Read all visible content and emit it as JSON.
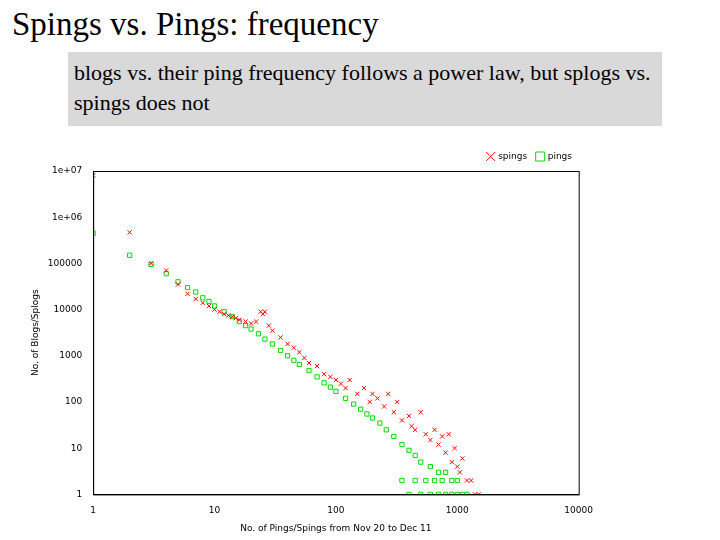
{
  "chart_data": {
    "type": "scatter",
    "title": "Spings vs. Pings: frequency",
    "subtitle": "blogs vs. their ping frequency follows a power law, but splogs vs. spings does not",
    "x_label": "No. of Pings/Spings from Nov 20 to Dec 11",
    "y_label": "No. of Blogs/Splogs",
    "log": true,
    "grid": false,
    "legend": "top-right",
    "xlim": [
      1,
      10000
    ],
    "xticks": [
      1,
      10,
      100,
      1000,
      10000
    ],
    "ylim": [
      1,
      10000000
    ],
    "yticks": [
      1,
      10,
      100,
      1000,
      10000,
      100000,
      {
        "value": 1000000,
        "label": "1e+06"
      },
      {
        "value": 10000000,
        "label": "1e+07"
      }
    ],
    "series": [
      {
        "name": "spings",
        "color": "#ff0000",
        "marker": "x",
        "x": [
          1,
          2,
          3,
          4,
          5,
          6,
          7,
          8,
          9,
          10,
          11,
          12,
          13,
          14,
          15,
          16,
          18,
          20,
          22,
          24,
          25,
          26,
          28,
          30,
          35,
          40,
          45,
          50,
          55,
          60,
          70,
          80,
          90,
          100,
          110,
          120,
          130,
          150,
          170,
          190,
          200,
          220,
          250,
          270,
          300,
          320,
          350,
          400,
          420,
          450,
          500,
          550,
          600,
          650,
          700,
          750,
          800,
          850,
          900,
          950,
          1000,
          1050,
          1100,
          1200,
          1300,
          1400,
          1500
        ],
        "values": [
          8000000,
          470000,
          100000,
          70000,
          35000,
          22000,
          17000,
          14000,
          12000,
          10000,
          9000,
          8000,
          7500,
          7000,
          6500,
          6000,
          5500,
          5000,
          5500,
          9000,
          8000,
          9000,
          4500,
          3500,
          2500,
          1800,
          1500,
          1200,
          900,
          700,
          600,
          400,
          350,
          300,
          250,
          200,
          300,
          150,
          200,
          100,
          150,
          120,
          80,
          150,
          60,
          100,
          40,
          50,
          30,
          25,
          60,
          20,
          15,
          25,
          12,
          18,
          8,
          20,
          5,
          10,
          4,
          3,
          6,
          2,
          2,
          1,
          1
        ]
      },
      {
        "name": "pings",
        "color": "#00dd00",
        "marker": "square",
        "x": [
          1,
          2,
          3,
          4,
          5,
          6,
          7,
          8,
          9,
          10,
          12,
          14,
          16,
          18,
          20,
          23,
          26,
          30,
          35,
          40,
          45,
          50,
          60,
          70,
          80,
          90,
          100,
          120,
          140,
          160,
          180,
          200,
          230,
          260,
          300,
          350,
          400,
          450,
          500,
          600,
          700,
          800,
          900,
          1000,
          1100,
          400,
          500,
          600,
          700,
          800,
          900,
          1000,
          1200,
          350,
          450,
          550,
          650,
          750
        ],
        "values": [
          450000,
          150000,
          95000,
          60000,
          40000,
          30000,
          24000,
          18000,
          15000,
          12000,
          9000,
          7000,
          5500,
          4500,
          3800,
          3000,
          2300,
          1800,
          1300,
          1000,
          800,
          650,
          480,
          350,
          260,
          210,
          170,
          120,
          90,
          70,
          55,
          45,
          35,
          25,
          18,
          12,
          9,
          7,
          5,
          4,
          3,
          3,
          2,
          2,
          1,
          1,
          1,
          1,
          1,
          1,
          1,
          1,
          1,
          2,
          2,
          2,
          2,
          2
        ]
      }
    ]
  }
}
